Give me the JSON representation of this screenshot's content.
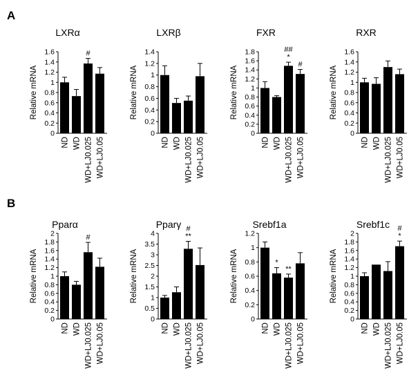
{
  "panels": [
    {
      "letter": "A"
    },
    {
      "letter": "B"
    }
  ],
  "chart_data": [
    {
      "type": "bar",
      "panel": "A",
      "title": "LXRα",
      "ylabel": "Relative mRNA",
      "categories": [
        "ND",
        "WD",
        "WD+LJ0.025",
        "WD+LJ0.05"
      ],
      "values": [
        1.0,
        0.73,
        1.37,
        1.17
      ],
      "errors": [
        0.1,
        0.13,
        0.1,
        0.12
      ],
      "annotations": [
        "",
        "",
        "#",
        ""
      ],
      "ylim": [
        0,
        1.6
      ],
      "ticks": [
        0,
        0.2,
        0.4,
        0.6,
        0.8,
        1,
        1.2,
        1.4,
        1.6
      ],
      "tick_labels": [
        "0",
        "0.2",
        "0.4",
        "0.6",
        "0.8",
        "1",
        "1.2",
        "1.4",
        "1.6"
      ]
    },
    {
      "type": "bar",
      "panel": "A",
      "title": "LXRβ",
      "ylabel": "Relative mRNA",
      "categories": [
        "ND",
        "WD",
        "WD+LJ0.025",
        "WD+LJ0.05"
      ],
      "values": [
        1.0,
        0.52,
        0.56,
        0.98
      ],
      "errors": [
        0.16,
        0.08,
        0.08,
        0.22
      ],
      "annotations": [
        "",
        "",
        "",
        ""
      ],
      "ylim": [
        0,
        1.4
      ],
      "ticks": [
        0,
        0.2,
        0.4,
        0.6,
        0.8,
        1,
        1.2,
        1.4
      ],
      "tick_labels": [
        "0",
        "0.2",
        "0.4",
        "0.6",
        "0.8",
        "1",
        "1.2",
        "1.4"
      ]
    },
    {
      "type": "bar",
      "panel": "A",
      "title": "FXR",
      "ylabel": "Relative mRNA",
      "categories": [
        "ND",
        "WD",
        "WD+LJ0.025",
        "WD+LJ0.05"
      ],
      "values": [
        1.0,
        0.8,
        1.49,
        1.31
      ],
      "errors": [
        0.14,
        0.03,
        0.08,
        0.1
      ],
      "annotations": [
        "",
        "",
        "##\n*",
        "#"
      ],
      "ylim": [
        0,
        1.8
      ],
      "ticks": [
        0,
        0.2,
        0.4,
        0.6,
        0.8,
        1,
        1.2,
        1.4,
        1.6,
        1.8
      ],
      "tick_labels": [
        "0",
        "0.2",
        "0.4",
        "0.6",
        "0.8",
        "1",
        "1.2",
        "1.4",
        "1.6",
        "1.8"
      ]
    },
    {
      "type": "bar",
      "panel": "A",
      "title": "RXR",
      "ylabel": "Relative mRNA",
      "categories": [
        "ND",
        "WD",
        "WD+LJ0.025",
        "WD+LJ0.05"
      ],
      "values": [
        1.0,
        0.97,
        1.3,
        1.16
      ],
      "errors": [
        0.08,
        0.12,
        0.12,
        0.1
      ],
      "annotations": [
        "",
        "",
        "",
        ""
      ],
      "ylim": [
        0,
        1.6
      ],
      "ticks": [
        0,
        0.2,
        0.4,
        0.6,
        0.8,
        1,
        1.2,
        1.4,
        1.6
      ],
      "tick_labels": [
        "0",
        "0.2",
        "0.4",
        "0.6",
        "0.8",
        "1",
        "1.2",
        "1.4",
        "1.6"
      ]
    },
    {
      "type": "bar",
      "panel": "B",
      "title": "Pparα",
      "ylabel": "Relative mRNA",
      "categories": [
        "ND",
        "WD",
        "WD+LJ0.025",
        "WD+LJ0.05"
      ],
      "values": [
        1.0,
        0.8,
        1.56,
        1.22
      ],
      "errors": [
        0.1,
        0.08,
        0.23,
        0.2
      ],
      "annotations": [
        "",
        "",
        "#",
        ""
      ],
      "ylim": [
        0,
        2
      ],
      "ticks": [
        0,
        0.2,
        0.4,
        0.6,
        0.8,
        1,
        1.2,
        1.4,
        1.6,
        1.8,
        2
      ],
      "tick_labels": [
        "0",
        "0.2",
        "0.4",
        "0.6",
        "0.8",
        "1",
        "1.2",
        "1.4",
        "1.6",
        "1.8",
        "2"
      ]
    },
    {
      "type": "bar",
      "panel": "B",
      "title": "Pparγ",
      "ylabel": "Relative mRNA",
      "categories": [
        "ND",
        "WD",
        "WD+LJ0.025",
        "WD+LJ0.05"
      ],
      "values": [
        1.0,
        1.25,
        3.28,
        2.52
      ],
      "errors": [
        0.1,
        0.25,
        0.35,
        0.8
      ],
      "annotations": [
        "",
        "",
        "#\n**",
        ""
      ],
      "ylim": [
        0,
        4
      ],
      "ticks": [
        0,
        0.5,
        1,
        1.5,
        2,
        2.5,
        3,
        3.5,
        4
      ],
      "tick_labels": [
        "0",
        "0.5",
        "1",
        "1.5",
        "2",
        "2.5",
        "3",
        "3.5",
        "4"
      ]
    },
    {
      "type": "bar",
      "panel": "B",
      "title": "Srebf1a",
      "ylabel": "Relative mRNA",
      "categories": [
        "ND",
        "WD",
        "WD+LJ0.025",
        "WD+LJ0.05"
      ],
      "values": [
        1.0,
        0.64,
        0.58,
        0.78
      ],
      "errors": [
        0.08,
        0.08,
        0.05,
        0.15
      ],
      "annotations": [
        "",
        "*",
        "**",
        ""
      ],
      "ylim": [
        0,
        1.2
      ],
      "ticks": [
        0,
        0.2,
        0.4,
        0.6,
        0.8,
        1,
        1.2
      ],
      "tick_labels": [
        "0",
        "0.2",
        "0.4",
        "0.6",
        "0.8",
        "1",
        "1.2"
      ]
    },
    {
      "type": "bar",
      "panel": "B",
      "title": "Srebf1c",
      "ylabel": "Relative mRNA",
      "categories": [
        "ND",
        "WD",
        "WD+LJ0.025",
        "WD+LJ0.05"
      ],
      "values": [
        1.0,
        1.27,
        1.12,
        1.7
      ],
      "errors": [
        0.08,
        0.0,
        0.22,
        0.12
      ],
      "annotations": [
        "",
        "",
        "",
        "#\n*"
      ],
      "ylim": [
        0,
        2
      ],
      "ticks": [
        0,
        0.2,
        0.4,
        0.6,
        0.8,
        1,
        1.2,
        1.4,
        1.6,
        1.8,
        2
      ],
      "tick_labels": [
        "0",
        "0.2",
        "0.4",
        "0.6",
        "0.8",
        "1",
        "1.2",
        "1.4",
        "1.6",
        "1.8",
        "2"
      ]
    }
  ]
}
